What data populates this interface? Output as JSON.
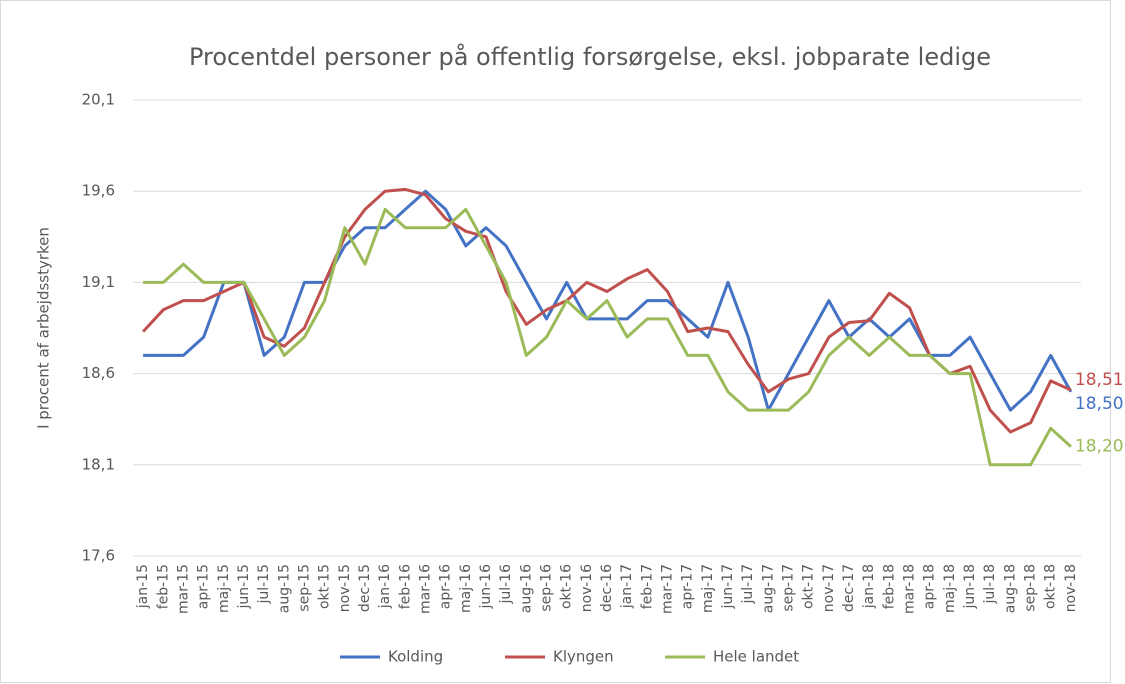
{
  "chart_data": {
    "type": "line",
    "title": "Procentdel personer på offentlig forsørgelse, eksl. jobparate ledige",
    "y_label": "I procent af arbejdsstyrken",
    "categories": [
      "jan-15",
      "feb-15",
      "mar-15",
      "apr-15",
      "maj-15",
      "jun-15",
      "jul-15",
      "aug-15",
      "sep-15",
      "okt-15",
      "nov-15",
      "dec-15",
      "jan-16",
      "feb-16",
      "mar-16",
      "apr-16",
      "maj-16",
      "jun-16",
      "jul-16",
      "aug-16",
      "sep-16",
      "okt-16",
      "nov-16",
      "dec-16",
      "jan-17",
      "feb-17",
      "mar-17",
      "apr-17",
      "maj-17",
      "jun-17",
      "jul-17",
      "aug-17",
      "sep-17",
      "okt-17",
      "nov-17",
      "dec-17",
      "jan-18",
      "feb-18",
      "mar-18",
      "apr-18",
      "maj-18",
      "jun-18",
      "jul-18",
      "aug-18",
      "sep-18",
      "okt-18",
      "nov-18"
    ],
    "series": [
      {
        "name": "Kolding",
        "color": "#4472c4",
        "values": [
          18.7,
          18.7,
          18.7,
          18.8,
          19.1,
          19.1,
          18.7,
          18.8,
          19.1,
          19.1,
          19.3,
          19.4,
          19.4,
          19.5,
          19.6,
          19.5,
          19.3,
          19.4,
          19.3,
          19.1,
          18.9,
          19.1,
          18.9,
          18.9,
          18.9,
          19.0,
          19.0,
          18.9,
          18.8,
          19.1,
          18.8,
          18.4,
          18.6,
          18.8,
          19.0,
          18.8,
          18.9,
          18.8,
          18.9,
          18.7,
          18.7,
          18.8,
          18.6,
          18.4,
          18.5,
          18.7,
          18.5
        ],
        "value_labels": [
          null,
          null,
          null,
          null,
          null,
          null,
          null,
          null,
          null,
          null,
          null,
          null,
          null,
          null,
          null,
          null,
          null,
          null,
          null,
          null,
          null,
          null,
          null,
          null,
          null,
          null,
          null,
          null,
          null,
          null,
          null,
          null,
          null,
          null,
          null,
          null,
          null,
          null,
          null,
          null,
          null,
          null,
          null,
          null,
          null,
          null,
          "18,50"
        ]
      },
      {
        "name": "Klyngen",
        "color": "#c0504d",
        "values": [
          18.83,
          18.95,
          19.0,
          19.0,
          19.05,
          19.1,
          18.8,
          18.75,
          18.85,
          19.1,
          19.35,
          19.5,
          19.6,
          19.61,
          19.58,
          19.45,
          19.38,
          19.35,
          19.05,
          18.87,
          18.95,
          19.0,
          19.1,
          19.05,
          19.12,
          19.17,
          19.05,
          18.83,
          18.85,
          18.83,
          18.65,
          18.5,
          18.57,
          18.6,
          18.8,
          18.88,
          18.89,
          19.04,
          18.96,
          18.7,
          18.6,
          18.64,
          18.4,
          18.28,
          18.33,
          18.56,
          18.51
        ],
        "value_labels": [
          null,
          null,
          null,
          null,
          null,
          null,
          null,
          null,
          null,
          null,
          null,
          null,
          null,
          null,
          null,
          null,
          null,
          null,
          null,
          null,
          null,
          null,
          null,
          null,
          null,
          null,
          null,
          null,
          null,
          null,
          null,
          null,
          null,
          null,
          null,
          null,
          null,
          null,
          null,
          null,
          null,
          null,
          null,
          null,
          null,
          null,
          "18,51"
        ]
      },
      {
        "name": "Hele landet",
        "color": "#9bbb59",
        "values": [
          19.1,
          19.1,
          19.2,
          19.1,
          19.1,
          19.1,
          18.9,
          18.7,
          18.8,
          19.0,
          19.4,
          19.2,
          19.5,
          19.4,
          19.4,
          19.4,
          19.5,
          19.3,
          19.1,
          18.7,
          18.8,
          19.0,
          18.9,
          19.0,
          18.8,
          18.9,
          18.9,
          18.7,
          18.7,
          18.5,
          18.4,
          18.4,
          18.4,
          18.5,
          18.7,
          18.8,
          18.7,
          18.8,
          18.7,
          18.7,
          18.6,
          18.6,
          18.1,
          18.1,
          18.1,
          18.3,
          18.2
        ],
        "value_labels": [
          null,
          null,
          null,
          null,
          null,
          null,
          null,
          null,
          null,
          null,
          null,
          null,
          null,
          null,
          null,
          null,
          null,
          null,
          null,
          null,
          null,
          null,
          null,
          null,
          null,
          null,
          null,
          null,
          null,
          null,
          null,
          null,
          null,
          null,
          null,
          null,
          null,
          null,
          null,
          null,
          null,
          null,
          null,
          null,
          null,
          null,
          "18,20"
        ]
      }
    ],
    "ylim": [
      17.6,
      20.1
    ],
    "yticks": [
      {
        "value": 17.6,
        "label": "17,6"
      },
      {
        "value": 18.1,
        "label": "18,1"
      },
      {
        "value": 18.6,
        "label": "18,6"
      },
      {
        "value": 19.1,
        "label": "19,1"
      },
      {
        "value": 19.6,
        "label": "19,6"
      },
      {
        "value": 20.1,
        "label": "20,1"
      }
    ],
    "grid": true,
    "legend": "bottom"
  }
}
